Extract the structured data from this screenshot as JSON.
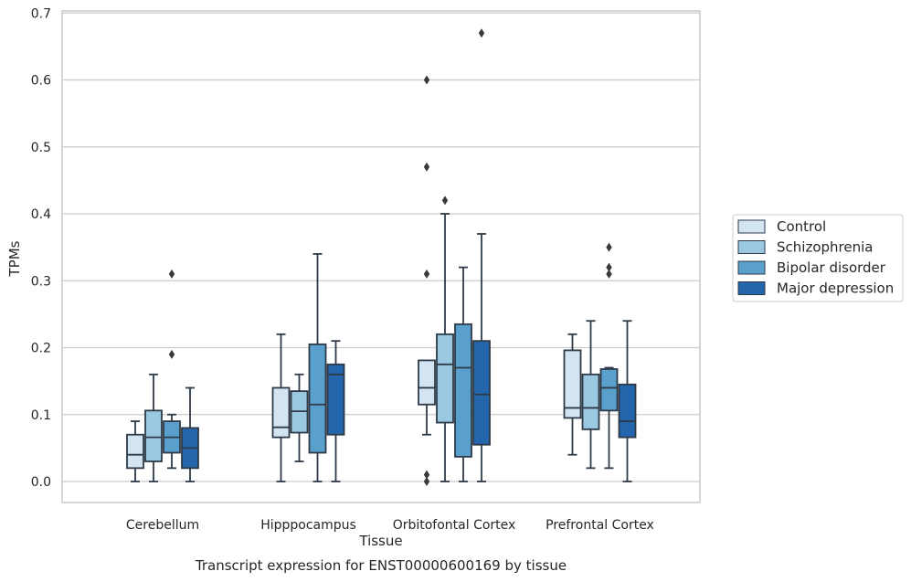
{
  "chart_data": {
    "type": "box",
    "title": "",
    "caption": "Transcript expression for ENST00000600169 by tissue",
    "xlabel": "Tissue",
    "ylabel": "TPMs",
    "ylim": [
      -0.03,
      0.705
    ],
    "yticks": [
      "0.0",
      "0.1",
      "0.2",
      "0.3",
      "0.4",
      "0.5",
      "0.6",
      "0.7"
    ],
    "grid": "horizontal",
    "legend_position": "right",
    "categories": [
      "Cerebellum",
      "Hipppocampus",
      "Orbitofontal Cortex",
      "Prefrontal Cortex"
    ],
    "series": [
      {
        "name": "Control",
        "color": "#d3e4f3",
        "boxes": [
          {
            "whisker_low": 0.0,
            "q1": 0.02,
            "median": 0.04,
            "q3": 0.07,
            "whisker_high": 0.09,
            "outliers": []
          },
          {
            "whisker_low": 0.0,
            "q1": 0.066,
            "median": 0.081,
            "q3": 0.14,
            "whisker_high": 0.22,
            "outliers": []
          },
          {
            "whisker_low": 0.07,
            "q1": 0.115,
            "median": 0.14,
            "q3": 0.181,
            "whisker_high": 0.181,
            "outliers": [
              0.0,
              0.01,
              0.31,
              0.47,
              0.6
            ]
          },
          {
            "whisker_low": 0.04,
            "q1": 0.095,
            "median": 0.11,
            "q3": 0.196,
            "whisker_high": 0.22,
            "outliers": []
          }
        ]
      },
      {
        "name": "Schizophrenia",
        "color": "#9ac8e0",
        "boxes": [
          {
            "whisker_low": 0.0,
            "q1": 0.03,
            "median": 0.066,
            "q3": 0.106,
            "whisker_high": 0.16,
            "outliers": []
          },
          {
            "whisker_low": 0.03,
            "q1": 0.073,
            "median": 0.105,
            "q3": 0.135,
            "whisker_high": 0.16,
            "outliers": []
          },
          {
            "whisker_low": 0.0,
            "q1": 0.088,
            "median": 0.175,
            "q3": 0.22,
            "whisker_high": 0.4,
            "outliers": [
              0.42
            ]
          },
          {
            "whisker_low": 0.02,
            "q1": 0.078,
            "median": 0.11,
            "q3": 0.16,
            "whisker_high": 0.24,
            "outliers": []
          }
        ]
      },
      {
        "name": "Bipolar disorder",
        "color": "#5aa0cd",
        "boxes": [
          {
            "whisker_low": 0.02,
            "q1": 0.043,
            "median": 0.066,
            "q3": 0.09,
            "whisker_high": 0.1,
            "outliers": [
              0.19,
              0.31
            ]
          },
          {
            "whisker_low": 0.0,
            "q1": 0.043,
            "median": 0.115,
            "q3": 0.205,
            "whisker_high": 0.34,
            "outliers": []
          },
          {
            "whisker_low": 0.0,
            "q1": 0.037,
            "median": 0.17,
            "q3": 0.235,
            "whisker_high": 0.32,
            "outliers": []
          },
          {
            "whisker_low": 0.02,
            "q1": 0.106,
            "median": 0.14,
            "q3": 0.168,
            "whisker_high": 0.17,
            "outliers": [
              0.31,
              0.32,
              0.35
            ]
          }
        ]
      },
      {
        "name": "Major depression",
        "color": "#2366ab",
        "boxes": [
          {
            "whisker_low": 0.0,
            "q1": 0.02,
            "median": 0.05,
            "q3": 0.08,
            "whisker_high": 0.14,
            "outliers": []
          },
          {
            "whisker_low": 0.0,
            "q1": 0.07,
            "median": 0.16,
            "q3": 0.175,
            "whisker_high": 0.21,
            "outliers": []
          },
          {
            "whisker_low": 0.0,
            "q1": 0.055,
            "median": 0.13,
            "q3": 0.21,
            "whisker_high": 0.37,
            "outliers": [
              0.67
            ]
          },
          {
            "whisker_low": 0.0,
            "q1": 0.066,
            "median": 0.09,
            "q3": 0.145,
            "whisker_high": 0.24,
            "outliers": []
          }
        ]
      }
    ]
  }
}
